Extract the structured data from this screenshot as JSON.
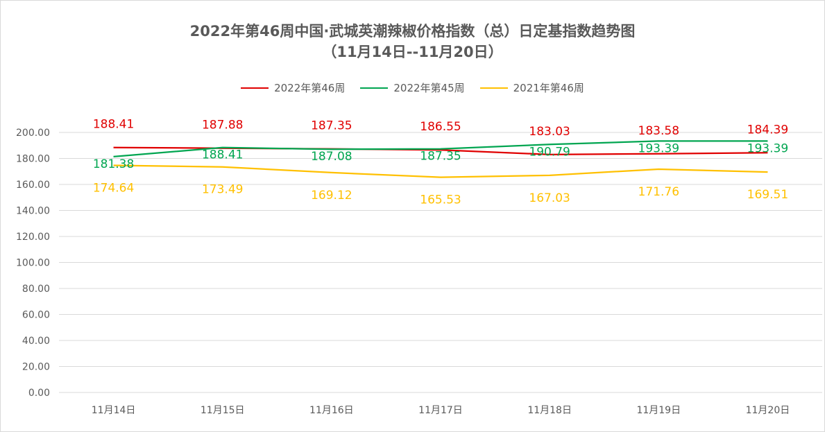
{
  "chart_data": {
    "type": "line",
    "title": "2022年第46周中国·武城英潮辣椒价格指数（总）日定基指数趋势图",
    "subtitle": "（11月14日--11月20日）",
    "categories": [
      "11月14日",
      "11月15日",
      "11月16日",
      "11月17日",
      "11月18日",
      "11月19日",
      "11月20日"
    ],
    "ylim": [
      0,
      200
    ],
    "yticks": [
      "0.00",
      "20.00",
      "40.00",
      "60.00",
      "80.00",
      "100.00",
      "120.00",
      "140.00",
      "160.00",
      "180.00",
      "200.00"
    ],
    "grid": true,
    "legend_position": "top",
    "series": [
      {
        "name": "2022年第46周",
        "color": "#e00000",
        "values": [
          188.41,
          187.88,
          187.35,
          186.55,
          183.03,
          183.58,
          184.39
        ]
      },
      {
        "name": "2022年第45周",
        "color": "#00a550",
        "values": [
          181.38,
          188.41,
          187.08,
          187.35,
          190.79,
          193.39,
          193.39
        ]
      },
      {
        "name": "2021年第46周",
        "color": "#ffc000",
        "values": [
          174.64,
          173.49,
          169.12,
          165.53,
          167.03,
          171.76,
          169.51
        ]
      }
    ]
  }
}
